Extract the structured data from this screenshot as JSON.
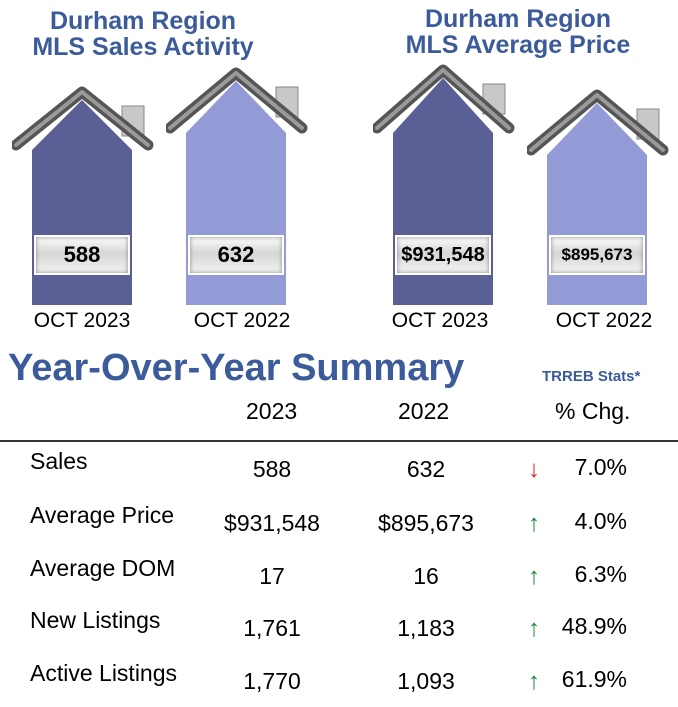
{
  "colors": {
    "title": "#3b5b9b",
    "current_year": "#5a5f96",
    "prior_year": "#939bd6",
    "up": "#1a8a3a",
    "down": "#e02020"
  },
  "sales_panel": {
    "title_line1": "Durham Region",
    "title_line2": "MLS Sales Activity"
  },
  "price_panel": {
    "title_line1": "Durham Region",
    "title_line2": "MLS Average Price"
  },
  "chart_data": [
    {
      "type": "bar",
      "title": "Durham Region MLS Sales Activity",
      "categories": [
        "OCT 2023",
        "OCT 2022"
      ],
      "values": [
        588,
        632
      ],
      "labels": [
        "588",
        "632"
      ]
    },
    {
      "type": "bar",
      "title": "Durham Region MLS Average Price",
      "categories": [
        "OCT 2023",
        "OCT 2022"
      ],
      "values": [
        931548,
        895673
      ],
      "labels": [
        "$931,548",
        "$895,673"
      ]
    }
  ],
  "summary": {
    "title": "Year-Over-Year Summary",
    "source": "TRREB  Stats*",
    "headers": [
      "2023",
      "2022",
      "% Chg."
    ],
    "rows": [
      {
        "label": "Sales",
        "y2023": "588",
        "y2022": "632",
        "direction": "down",
        "arrow": "↓",
        "change": "7.0%"
      },
      {
        "label": "Average Price",
        "y2023": "$931,548",
        "y2022": "$895,673",
        "direction": "up",
        "arrow": "↑",
        "change": "4.0%"
      },
      {
        "label": "Average DOM",
        "y2023": "17",
        "y2022": "16",
        "direction": "up",
        "arrow": "↑",
        "change": "6.3%"
      },
      {
        "label": "New Listings",
        "y2023": "1,761",
        "y2022": "1,183",
        "direction": "up",
        "arrow": "↑",
        "change": "48.9%"
      },
      {
        "label": "Active Listings",
        "y2023": "1,770",
        "y2022": "1,093",
        "direction": "up",
        "arrow": "↑",
        "change": "61.9%"
      }
    ]
  }
}
